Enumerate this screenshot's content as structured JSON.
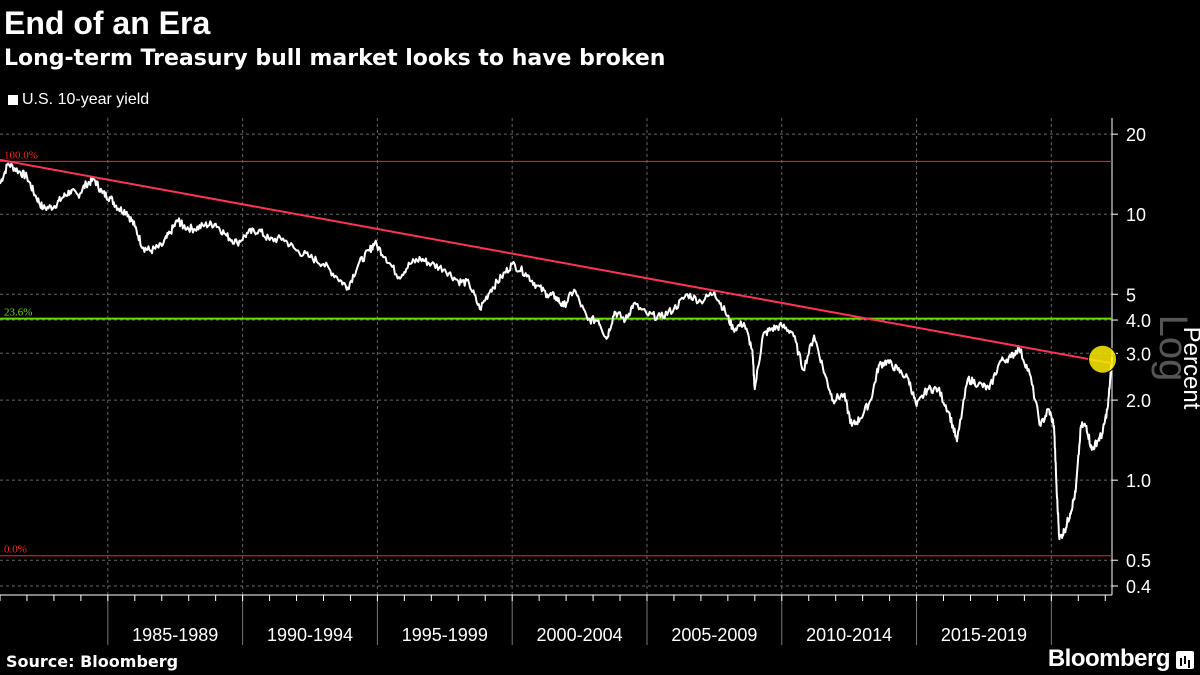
{
  "header": {
    "title": "End of an Era",
    "subtitle": "Long-term Treasury bull market looks to have broken",
    "legend_label": "U.S. 10-year yield"
  },
  "footer": {
    "source": "Source: Bloomberg",
    "brand": "Bloomberg"
  },
  "colors": {
    "background": "#000000",
    "series": "#ffffff",
    "trendline": "#ff3355",
    "fib_0": "#ff2222",
    "fib_236": "#66dd00",
    "highlight": "#ffee00"
  },
  "chart_data": {
    "type": "line",
    "title": "End of an Era",
    "subtitle": "Long-term Treasury bull market looks to have broken",
    "xlabel": "",
    "ylabel": "Percent",
    "yscale_label": "Log",
    "yscale": "log",
    "ylim": [
      0.37,
      23
    ],
    "xlim": [
      1981.0,
      2022.25
    ],
    "yticks": [
      {
        "value": 20,
        "label": "20"
      },
      {
        "value": 10,
        "label": "10"
      },
      {
        "value": 5,
        "label": "5"
      },
      {
        "value": 4,
        "label": "4.0"
      },
      {
        "value": 3,
        "label": "3.0"
      },
      {
        "value": 2,
        "label": "2.0"
      },
      {
        "value": 1,
        "label": "1.0"
      },
      {
        "value": 0.5,
        "label": "0.5"
      },
      {
        "value": 0.4,
        "label": "0.4"
      }
    ],
    "period_labels": [
      {
        "label": "1985-1989",
        "start": 1985,
        "end": 1990
      },
      {
        "label": "1990-1994",
        "start": 1990,
        "end": 1995
      },
      {
        "label": "1995-1999",
        "start": 1995,
        "end": 2000
      },
      {
        "label": "2000-2004",
        "start": 2000,
        "end": 2005
      },
      {
        "label": "2005-2009",
        "start": 2005,
        "end": 2010
      },
      {
        "label": "2010-2014",
        "start": 2010,
        "end": 2015
      },
      {
        "label": "2015-2019",
        "start": 2015,
        "end": 2020
      }
    ],
    "reference_lines": [
      {
        "label": "100.0%",
        "value": 15.8,
        "kind": "fib_100"
      },
      {
        "label": "23.6%",
        "value": 4.05,
        "kind": "fib_236"
      },
      {
        "label": "0.0%",
        "value": 0.52,
        "kind": "fib_0"
      }
    ],
    "trendline": {
      "from": [
        1981.0,
        16.0
      ],
      "to": [
        2022.25,
        2.75
      ]
    },
    "highlight": {
      "x": 2021.9,
      "y": 2.85
    },
    "series": [
      {
        "name": "U.S. 10-year yield",
        "x": [
          1981.0,
          1981.3,
          1981.7,
          1982.0,
          1982.3,
          1982.6,
          1983.0,
          1983.3,
          1983.6,
          1983.9,
          1984.2,
          1984.5,
          1984.8,
          1985.1,
          1985.4,
          1985.7,
          1986.0,
          1986.3,
          1986.6,
          1987.0,
          1987.3,
          1987.6,
          1987.8,
          1988.2,
          1988.6,
          1989.0,
          1989.4,
          1989.8,
          1990.2,
          1990.6,
          1991.0,
          1991.5,
          1992.0,
          1992.5,
          1993.0,
          1993.5,
          1993.9,
          1994.3,
          1994.7,
          1994.9,
          1995.3,
          1995.8,
          1996.2,
          1996.6,
          1997.0,
          1997.5,
          1998.0,
          1998.4,
          1998.8,
          1999.2,
          1999.6,
          2000.0,
          2000.5,
          2000.9,
          2001.3,
          2001.6,
          2001.9,
          2002.3,
          2002.8,
          2003.2,
          2003.5,
          2003.8,
          2004.2,
          2004.5,
          2005.0,
          2005.5,
          2006.0,
          2006.5,
          2007.0,
          2007.5,
          2007.9,
          2008.2,
          2008.6,
          2008.9,
          2009.0,
          2009.3,
          2009.6,
          2010.0,
          2010.4,
          2010.8,
          2011.2,
          2011.6,
          2011.9,
          2012.3,
          2012.6,
          2012.9,
          2013.3,
          2013.6,
          2013.9,
          2014.3,
          2014.7,
          2015.0,
          2015.4,
          2015.8,
          2016.2,
          2016.5,
          2016.9,
          2017.3,
          2017.7,
          2018.1,
          2018.5,
          2018.8,
          2019.2,
          2019.6,
          2019.9,
          2020.1,
          2020.2,
          2020.3,
          2020.5,
          2020.7,
          2020.9,
          2021.1,
          2021.3,
          2021.5,
          2021.7,
          2021.9,
          2022.1,
          2022.25
        ],
        "values": [
          13.0,
          15.5,
          14.5,
          13.8,
          11.8,
          10.5,
          10.7,
          11.5,
          12.2,
          11.8,
          13.0,
          13.5,
          12.0,
          11.5,
          10.5,
          10.2,
          9.0,
          7.5,
          7.3,
          7.6,
          8.5,
          9.5,
          9.0,
          8.8,
          9.1,
          9.2,
          8.3,
          7.8,
          8.5,
          8.7,
          8.0,
          8.1,
          7.3,
          6.9,
          6.5,
          5.8,
          5.3,
          6.5,
          7.3,
          7.8,
          6.9,
          5.8,
          6.5,
          6.8,
          6.5,
          6.2,
          5.6,
          5.5,
          4.4,
          5.2,
          5.8,
          6.5,
          6.0,
          5.4,
          5.0,
          4.9,
          4.5,
          5.2,
          4.0,
          4.0,
          3.4,
          4.3,
          4.0,
          4.6,
          4.2,
          4.1,
          4.4,
          5.0,
          4.7,
          5.1,
          4.3,
          3.7,
          3.9,
          3.1,
          2.2,
          3.5,
          3.7,
          3.8,
          3.6,
          2.6,
          3.5,
          2.5,
          2.0,
          2.1,
          1.6,
          1.7,
          2.0,
          2.7,
          2.8,
          2.6,
          2.4,
          1.9,
          2.2,
          2.2,
          1.8,
          1.4,
          2.4,
          2.3,
          2.2,
          2.8,
          2.9,
          3.15,
          2.5,
          1.6,
          1.85,
          1.6,
          0.9,
          0.6,
          0.65,
          0.75,
          0.9,
          1.6,
          1.6,
          1.3,
          1.4,
          1.5,
          1.9,
          2.9
        ]
      }
    ]
  }
}
